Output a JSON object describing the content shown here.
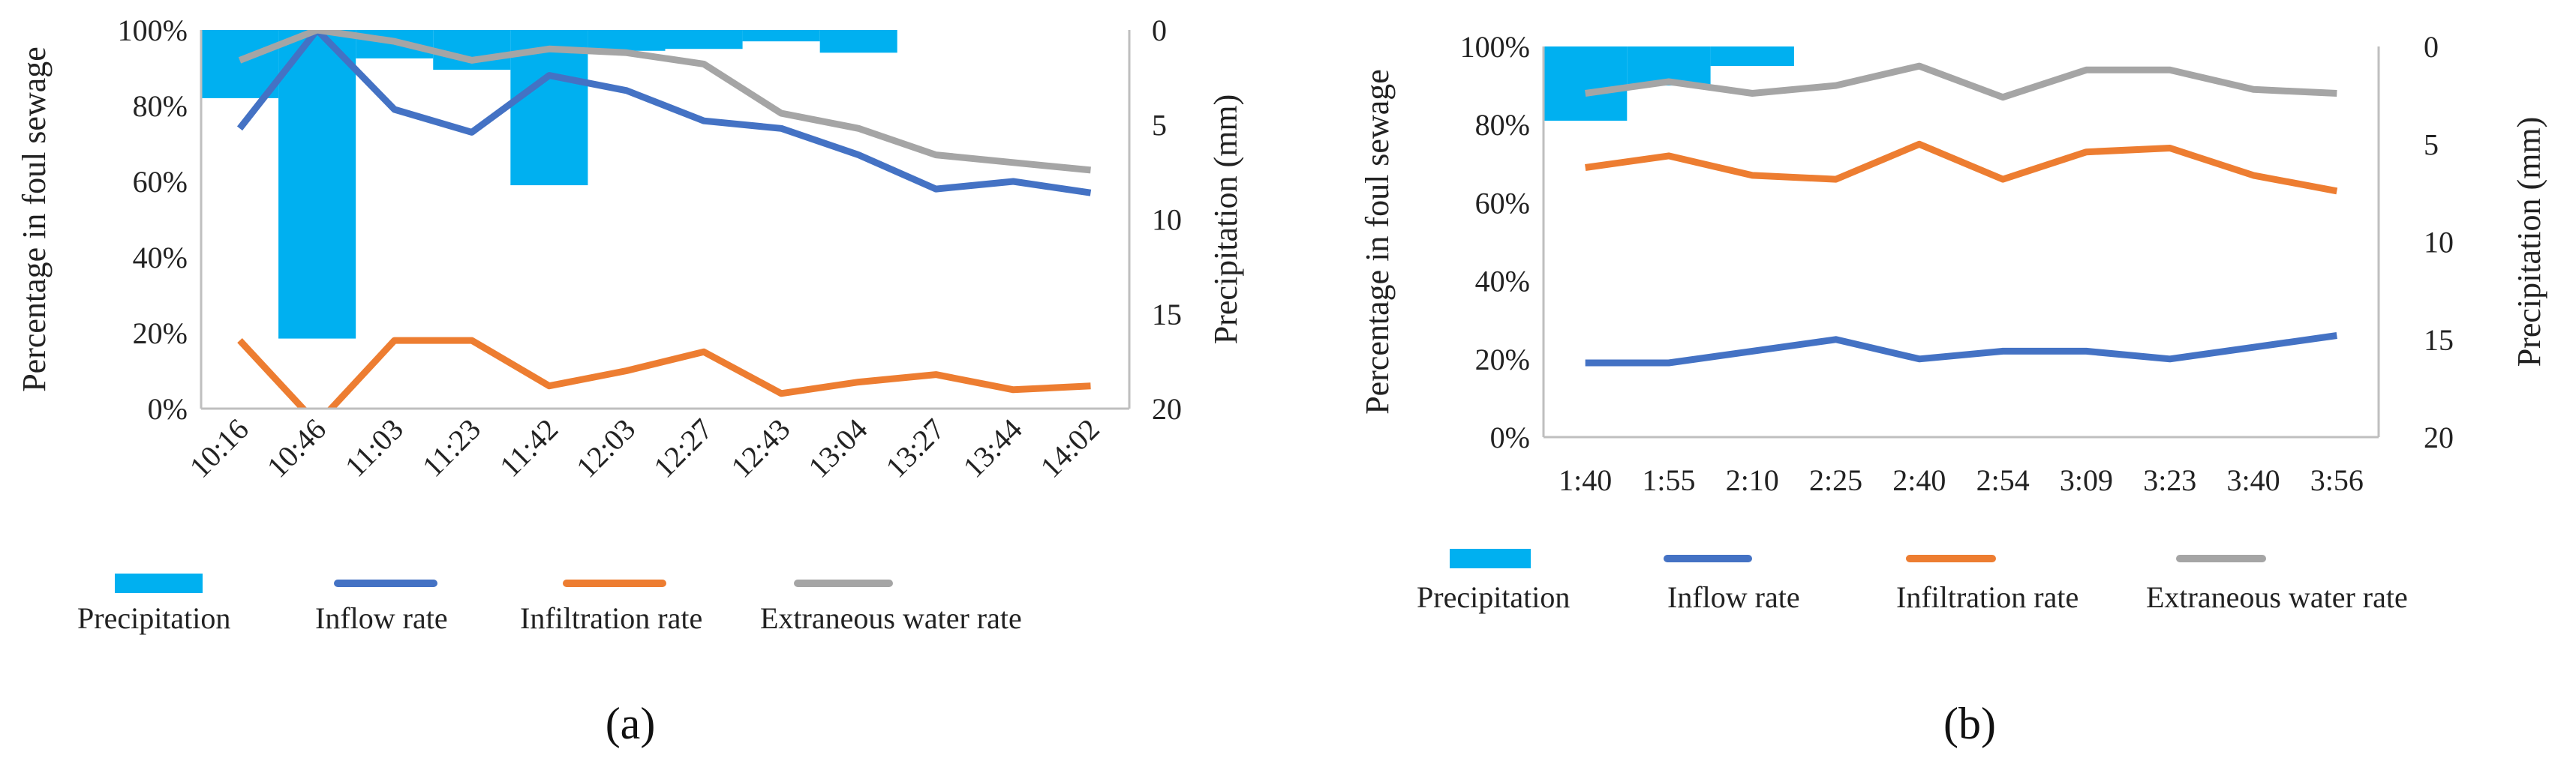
{
  "chart_data": [
    {
      "panel": "(a)",
      "type": "bar+line",
      "categories": [
        "10:16",
        "10:46",
        "11:03",
        "11:23",
        "11:42",
        "12:03",
        "12:27",
        "12:43",
        "13:04",
        "13:27",
        "13:44",
        "14:02"
      ],
      "ylabel": "Percentage in foul sewage",
      "y2label": "Precipitation (mm)",
      "ylim": [
        0,
        100
      ],
      "y2lim": [
        0,
        20
      ],
      "yticks": [
        "0%",
        "20%",
        "40%",
        "60%",
        "80%",
        "100%"
      ],
      "y2ticks": [
        "0",
        "5",
        "10",
        "15",
        "20"
      ],
      "series": [
        {
          "name": "Precipitation",
          "kind": "bar",
          "axis": "right",
          "color": "#00B0F0",
          "values": [
            3.6,
            16.3,
            1.5,
            2.1,
            8.2,
            1.1,
            1.0,
            0.6,
            1.2,
            0,
            0,
            0
          ]
        },
        {
          "name": "Inflow rate",
          "kind": "line",
          "axis": "left",
          "color": "#4472C4",
          "values": [
            74,
            100,
            79,
            73,
            88,
            84,
            76,
            74,
            67,
            58,
            60,
            57
          ]
        },
        {
          "name": "Infiltration rate",
          "kind": "line",
          "axis": "left",
          "color": "#ED7D31",
          "values": [
            18,
            -4,
            18,
            18,
            6,
            10,
            15,
            4,
            7,
            9,
            5,
            6
          ]
        },
        {
          "name": "Extraneous water rate",
          "kind": "line",
          "axis": "left",
          "color": "#A5A5A5",
          "values": [
            92,
            100,
            97,
            92,
            95,
            94,
            91,
            78,
            74,
            67,
            65,
            63
          ]
        }
      ],
      "legend": [
        "Precipitation",
        "Inflow rate",
        "Infiltration rate",
        "Extraneous water rate"
      ]
    },
    {
      "panel": "(b)",
      "type": "bar+line",
      "categories": [
        "1:40",
        "1:55",
        "2:10",
        "2:25",
        "2:40",
        "2:54",
        "3:09",
        "3:23",
        "3:40",
        "3:56"
      ],
      "ylabel": "Percentage in foul sewage",
      "y2label": "Precipitation (mm)",
      "ylim": [
        0,
        100
      ],
      "y2lim": [
        0,
        20
      ],
      "yticks": [
        "0%",
        "20%",
        "40%",
        "60%",
        "80%",
        "100%"
      ],
      "y2ticks": [
        "0",
        "5",
        "10",
        "15",
        "20"
      ],
      "series": [
        {
          "name": "Precipitation",
          "kind": "bar",
          "axis": "right",
          "color": "#00B0F0",
          "values": [
            3.8,
            2.0,
            1.0,
            0,
            0,
            0,
            0,
            0,
            0,
            0
          ]
        },
        {
          "name": "Inflow rate",
          "kind": "line",
          "axis": "left",
          "color": "#4472C4",
          "values": [
            19,
            19,
            22,
            25,
            20,
            22,
            22,
            20,
            23,
            26
          ]
        },
        {
          "name": "Infiltration rate",
          "kind": "line",
          "axis": "left",
          "color": "#ED7D31",
          "values": [
            69,
            72,
            67,
            66,
            75,
            66,
            73,
            74,
            67,
            63
          ]
        },
        {
          "name": "Extraneous water rate",
          "kind": "line",
          "axis": "left",
          "color": "#A5A5A5",
          "values": [
            88,
            91,
            88,
            90,
            95,
            87,
            94,
            94,
            89,
            88
          ]
        }
      ],
      "legend": [
        "Precipitation",
        "Inflow rate",
        "Infiltration rate",
        "Extraneous water rate"
      ]
    }
  ]
}
